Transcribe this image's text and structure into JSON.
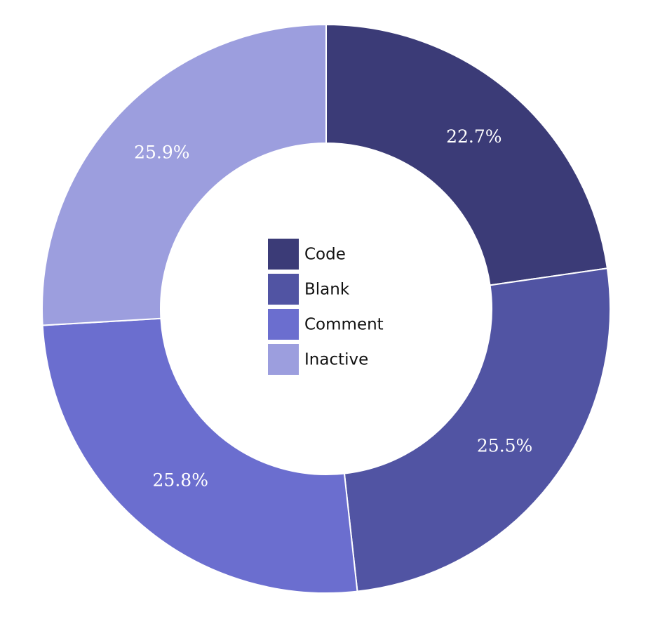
{
  "chart_data": {
    "type": "pie",
    "donut": true,
    "categories": [
      "Code",
      "Blank",
      "Comment",
      "Inactive"
    ],
    "values": [
      22.7,
      25.5,
      25.8,
      25.9
    ],
    "labels": [
      "22.7%",
      "25.5%",
      "25.8%",
      "25.9%"
    ],
    "colors": [
      "#3b3b77",
      "#5154a3",
      "#6b6ecf",
      "#9c9ede"
    ],
    "legend_position": "center"
  }
}
